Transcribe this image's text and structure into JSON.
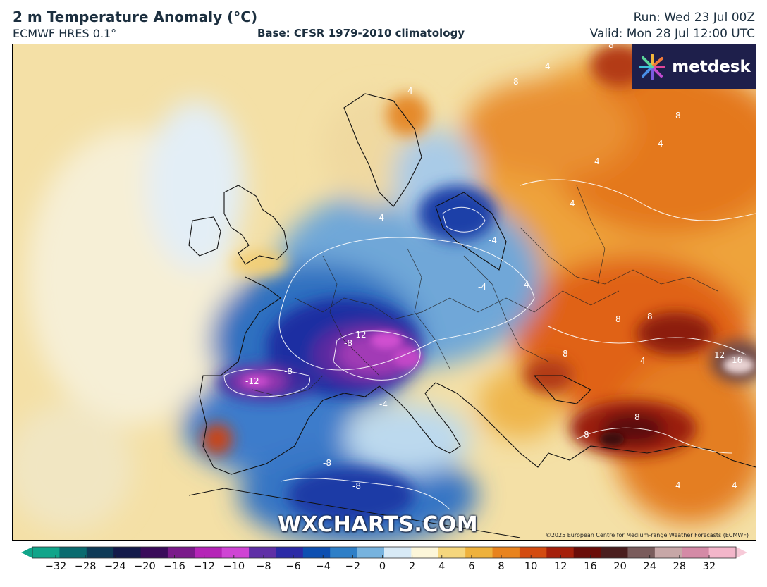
{
  "header": {
    "title": "2 m Temperature Anomaly (°C)",
    "model": "ECMWF HRES 0.1°",
    "base": "Base: CFSR 1979-2010 climatology",
    "run": "Run: Wed 23 Jul 00Z",
    "valid": "Valid: Mon 28 Jul 12:00 UTC"
  },
  "logo": {
    "text": "metdesk",
    "icon": "metdesk-star-icon"
  },
  "watermark": "WXCHARTS.COM",
  "copyright": "©2025 European Centre for Medium-range Weather Forecasts (ECMWF)",
  "map": {
    "region": "Europe",
    "contour_labels": [
      "-12",
      "-8",
      "-4",
      "4",
      "8",
      "12",
      "16"
    ]
  },
  "colorbar": {
    "ticks": [
      "−32",
      "−28",
      "−24",
      "−20",
      "−16",
      "−12",
      "−10",
      "−8",
      "−6",
      "−4",
      "−2",
      "0",
      "2",
      "4",
      "6",
      "8",
      "10",
      "12",
      "16",
      "20",
      "24",
      "28",
      "32"
    ],
    "colors": [
      "#11a58a",
      "#0a6b6f",
      "#0f3b57",
      "#131a4a",
      "#3a0b5a",
      "#7a1a8a",
      "#b524b7",
      "#cf44d4",
      "#5f2fa6",
      "#2b2aa6",
      "#0d4fb1",
      "#2e7fc7",
      "#77b3de",
      "#d8eaf6",
      "#fcf6d9",
      "#f5d67d",
      "#eeb13c",
      "#e8831e",
      "#d34b10",
      "#a5200b",
      "#6a0d09",
      "#4a1e1e",
      "#7a5c5c",
      "#c7a7a7",
      "#d48aa6",
      "#f3b6ca"
    ]
  }
}
